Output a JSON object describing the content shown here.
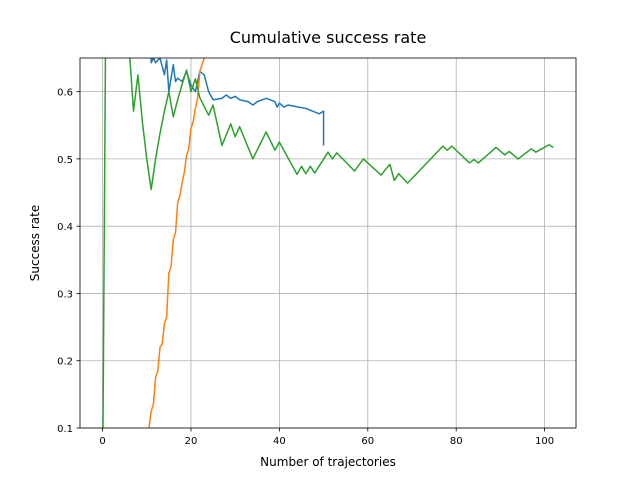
{
  "chart_data": {
    "type": "line",
    "title": "Cumulative success rate",
    "xlabel": "Number of trajectories",
    "ylabel": "Success rate",
    "xlim": [
      -5.1,
      107.1
    ],
    "ylim": [
      0.1,
      0.65
    ],
    "xticks": [
      0,
      20,
      40,
      60,
      80,
      100
    ],
    "yticks": [
      0.1,
      0.2,
      0.3,
      0.4,
      0.5,
      0.6
    ],
    "grid": true,
    "series": [
      {
        "color": "#1f77b4",
        "x": [
          10,
          11,
          11.5,
          12,
          13,
          14,
          14.5,
          15,
          16,
          16.5,
          17,
          18,
          19,
          20,
          21,
          22,
          23,
          24,
          25,
          27,
          28,
          29,
          30,
          31,
          33,
          34,
          35,
          37,
          39,
          39.5,
          40,
          41,
          42,
          46,
          49,
          50,
          50
        ],
        "values": [
          1.0,
          0.643,
          0.65,
          0.643,
          0.65,
          0.625,
          0.647,
          0.6,
          0.64,
          0.615,
          0.62,
          0.615,
          0.63,
          0.61,
          0.6,
          0.63,
          0.625,
          0.6,
          0.588,
          0.59,
          0.595,
          0.59,
          0.593,
          0.588,
          0.585,
          0.58,
          0.585,
          0.59,
          0.585,
          0.577,
          0.583,
          0.577,
          0.58,
          0.575,
          0.567,
          0.571,
          0.52
        ]
      },
      {
        "color": "#ff7f0e",
        "x": [
          10.5,
          11,
          11.5,
          12,
          12.5,
          13,
          13.5,
          14,
          14.5,
          15,
          15.5,
          16,
          16.5,
          17,
          17.5,
          18,
          18.5,
          19,
          19.5,
          20,
          20.5,
          21,
          21.5,
          22,
          22.5,
          23.5
        ],
        "values": [
          0.1,
          0.125,
          0.135,
          0.175,
          0.185,
          0.22,
          0.225,
          0.255,
          0.265,
          0.33,
          0.34,
          0.38,
          0.39,
          0.435,
          0.445,
          0.465,
          0.48,
          0.505,
          0.515,
          0.545,
          0.555,
          0.575,
          0.59,
          0.63,
          0.64,
          0.66
        ]
      },
      {
        "color": "#2ca02c",
        "x": [
          0,
          1,
          2,
          3,
          4,
          5,
          6,
          7,
          8,
          9,
          10,
          11,
          12,
          13,
          14,
          15,
          16,
          17,
          18,
          19,
          20,
          21,
          22,
          24,
          25,
          27,
          29,
          30,
          31,
          34,
          37,
          39,
          40,
          44,
          45,
          46,
          47,
          48,
          51,
          52,
          53,
          57,
          59,
          63,
          65,
          66,
          67,
          69,
          77,
          78,
          79,
          83,
          84,
          85,
          89,
          91,
          92,
          94,
          97,
          98,
          101,
          102
        ],
        "values": [
          0.0,
          1.0,
          1.0,
          0.667,
          0.75,
          0.8,
          0.667,
          0.571,
          0.625,
          0.556,
          0.5,
          0.4545,
          0.5,
          0.538,
          0.571,
          0.6,
          0.5625,
          0.588,
          0.611,
          0.632,
          0.6,
          0.619,
          0.591,
          0.565,
          0.58,
          0.52,
          0.552,
          0.533,
          0.548,
          0.5,
          0.54,
          0.513,
          0.525,
          0.477,
          0.489,
          0.478,
          0.489,
          0.479,
          0.51,
          0.5,
          0.509,
          0.482,
          0.5,
          0.476,
          0.492,
          0.468,
          0.478,
          0.464,
          0.519,
          0.513,
          0.519,
          0.494,
          0.499,
          0.494,
          0.517,
          0.506,
          0.511,
          0.5,
          0.515,
          0.51,
          0.521,
          0.517
        ]
      }
    ]
  }
}
